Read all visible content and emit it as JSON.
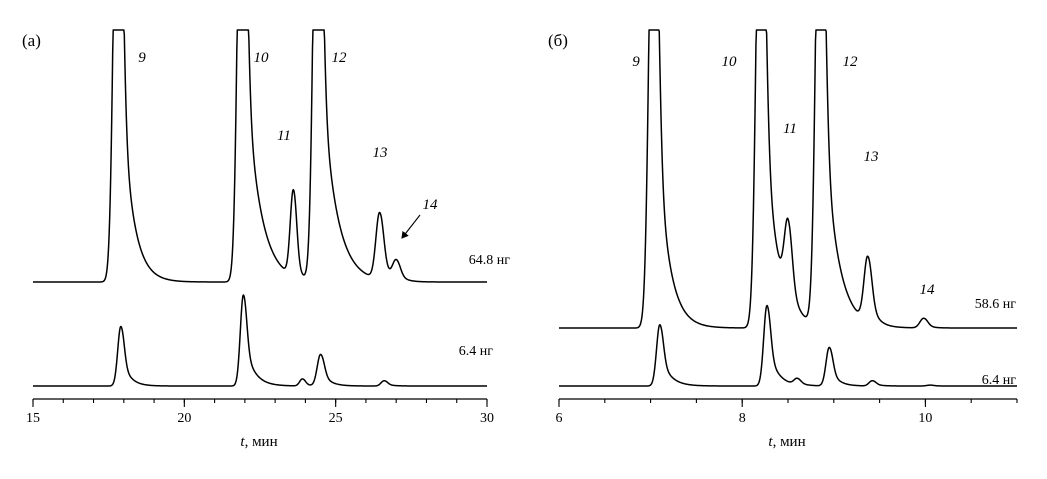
{
  "chart_data": [
    {
      "type": "line",
      "panel_label": "(а)",
      "xlabel_var": "t",
      "xlabel_unit": ", мин",
      "xlim": [
        15,
        30
      ],
      "x_ticks": [
        15,
        20,
        25,
        30
      ],
      "x_minor_step": 1,
      "series": [
        {
          "name": "64.8 нг",
          "baseline": 0.55,
          "peaks": [
            {
              "t": 17.8,
              "h": 30,
              "w": 0.13,
              "tail": 0.35,
              "num": "9"
            },
            {
              "t": 21.9,
              "h": 30,
              "w": 0.13,
              "tail": 0.45,
              "num": "10"
            },
            {
              "t": 23.6,
              "h": 4.9,
              "w": 0.1,
              "tail": 0.12,
              "num": "11"
            },
            {
              "t": 24.4,
              "h": 30,
              "w": 0.13,
              "tail": 0.45,
              "num": "12"
            },
            {
              "t": 26.45,
              "h": 3.8,
              "w": 0.12,
              "tail": 0.2,
              "num": "13"
            },
            {
              "t": 27.0,
              "h": 1.1,
              "w": 0.12,
              "tail": 0.2,
              "num": "14"
            }
          ]
        },
        {
          "name": "6.4 нг",
          "baseline": 0,
          "peaks": [
            {
              "t": 17.9,
              "h": 3.4,
              "w": 0.1,
              "tail": 0.25
            },
            {
              "t": 21.95,
              "h": 5.2,
              "w": 0.1,
              "tail": 0.3
            },
            {
              "t": 23.9,
              "h": 0.4,
              "w": 0.09,
              "tail": 0.15
            },
            {
              "t": 24.5,
              "h": 1.8,
              "w": 0.11,
              "tail": 0.25
            },
            {
              "t": 26.6,
              "h": 0.3,
              "w": 0.1,
              "tail": 0.2
            }
          ]
        }
      ]
    },
    {
      "type": "line",
      "panel_label": "(б)",
      "xlabel_var": "t",
      "xlabel_unit": ", мин",
      "xlim": [
        6,
        11
      ],
      "x_ticks": [
        6,
        8,
        10
      ],
      "x_minor_step": 0.5,
      "series": [
        {
          "name": "58.6 нг",
          "baseline": 0.2,
          "peaks": [
            {
              "t": 7.03,
              "h": 30,
              "w": 0.045,
              "tail": 0.12,
              "num": "9"
            },
            {
              "t": 8.2,
              "h": 30,
              "w": 0.045,
              "tail": 0.14,
              "num": "10"
            },
            {
              "t": 8.5,
              "h": 4.3,
              "w": 0.04,
              "tail": 0.06,
              "num": "11"
            },
            {
              "t": 8.85,
              "h": 30,
              "w": 0.045,
              "tail": 0.14,
              "num": "12"
            },
            {
              "t": 9.37,
              "h": 3.7,
              "w": 0.04,
              "tail": 0.07,
              "num": "13"
            },
            {
              "t": 9.98,
              "h": 0.55,
              "w": 0.04,
              "tail": 0.06,
              "num": "14"
            }
          ]
        },
        {
          "name": "6.4 нг",
          "baseline": 0,
          "peaks": [
            {
              "t": 7.1,
              "h": 3.5,
              "w": 0.035,
              "tail": 0.1
            },
            {
              "t": 8.27,
              "h": 4.6,
              "w": 0.035,
              "tail": 0.1
            },
            {
              "t": 8.6,
              "h": 0.35,
              "w": 0.035,
              "tail": 0.07
            },
            {
              "t": 8.95,
              "h": 2.2,
              "w": 0.035,
              "tail": 0.08
            },
            {
              "t": 9.42,
              "h": 0.3,
              "w": 0.035,
              "tail": 0.07
            },
            {
              "t": 10.05,
              "h": 0.05,
              "w": 0.035,
              "tail": 0.06
            }
          ]
        }
      ]
    }
  ]
}
